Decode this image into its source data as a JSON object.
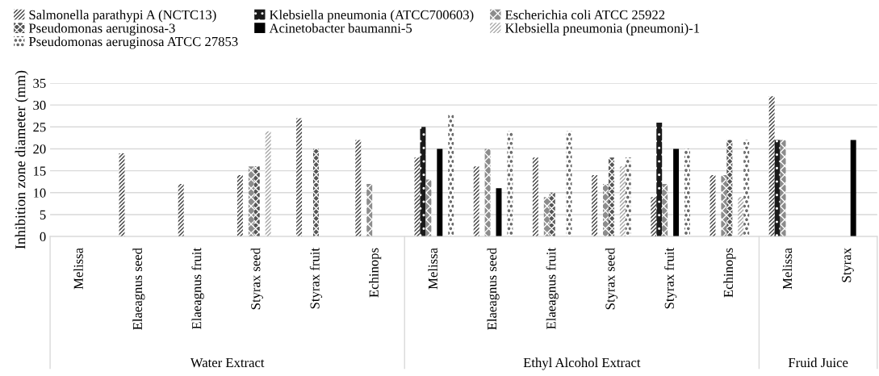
{
  "chart_data": {
    "type": "bar",
    "ylabel": "Inhibition zone diameter (mm)",
    "categories": [
      "Melissa",
      "Elaeagnus seed",
      "Elaeagnus fruit",
      "Styrax seed",
      "Styrax fruit",
      "Echinops",
      "Melissa",
      "Elaeagnus seed",
      "Elaeagnus fruit",
      "Styrax seed",
      "Styrax fruit",
      "Echinops",
      "Melissa",
      "Styrax"
    ],
    "annotations": [
      "Water Extract",
      "Ethyl Alcohol Extract",
      "Fruid Juice"
    ],
    "series": [
      {
        "name": "Salmonella parathypi A (NCTC13)",
        "color": "#404040",
        "values": [
          null,
          19,
          12,
          14,
          27,
          22,
          18,
          16,
          18,
          14,
          9,
          14,
          32,
          null
        ]
      },
      {
        "name": "Klebsiella pneumonia (ATCC700603)",
        "color": "#1a1a1a",
        "values": [
          null,
          null,
          null,
          null,
          null,
          null,
          25,
          null,
          null,
          null,
          26,
          null,
          22,
          null
        ]
      },
      {
        "name": "Escherichia coli ATCC 25922",
        "color": "#8c8c8c",
        "values": [
          null,
          null,
          null,
          16,
          null,
          12,
          13,
          20,
          9,
          12,
          12,
          14,
          22,
          null
        ]
      },
      {
        "name": "Pseudomonas aeruginosa-3",
        "color": "#555555",
        "values": [
          null,
          null,
          null,
          16,
          20,
          null,
          null,
          null,
          10,
          18,
          null,
          22,
          null,
          null
        ]
      },
      {
        "name": "Acinetobacter baumanni-5",
        "color": "#000000",
        "values": [
          null,
          null,
          null,
          null,
          null,
          null,
          20,
          11,
          null,
          null,
          20,
          null,
          null,
          22
        ]
      },
      {
        "name": "Klebsiella pneumonia (pneumoni)-1",
        "color": "#a6a6a6",
        "values": [
          null,
          null,
          null,
          24,
          null,
          null,
          null,
          null,
          null,
          16,
          null,
          9,
          null,
          null
        ]
      },
      {
        "name": "Pseudomonas aeruginosa ATCC 27853",
        "color": "#606060",
        "values": [
          null,
          null,
          null,
          null,
          null,
          null,
          28,
          24,
          24,
          18,
          20,
          22,
          null,
          null
        ]
      }
    ],
    "ylim": [
      0,
      35
    ],
    "yticks": [
      0,
      5,
      10,
      15,
      20,
      25,
      30,
      35
    ],
    "grid": "y",
    "legend": "top left"
  }
}
